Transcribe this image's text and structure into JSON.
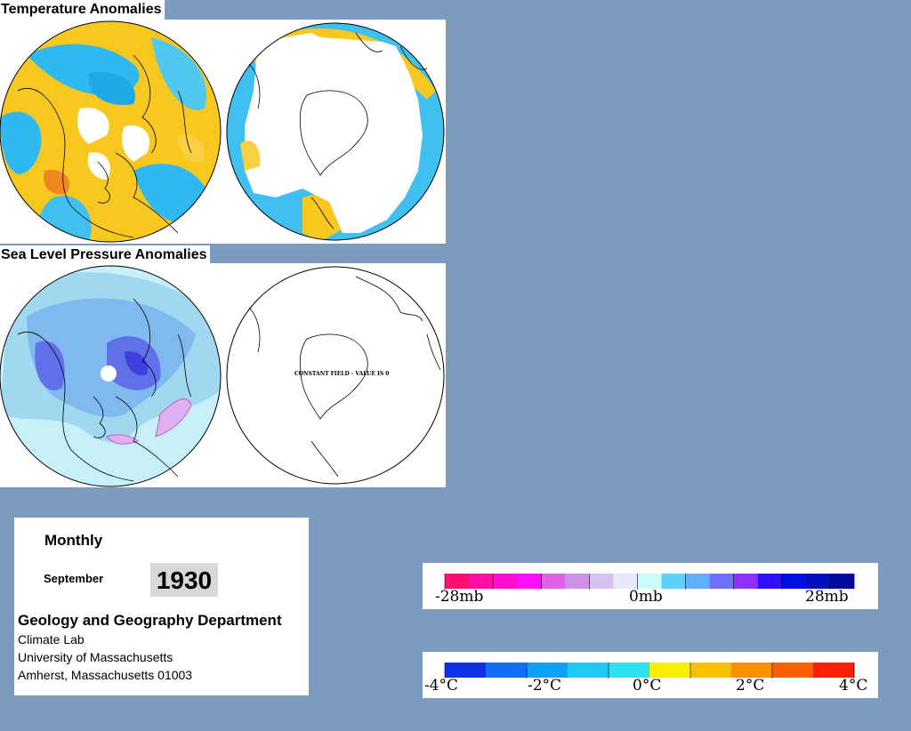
{
  "sections": {
    "temperature_title": "Temperature Anomalies",
    "pressure_title": "Sea Level Pressure Anomalies"
  },
  "south_pressure_note": "CONSTANT FIELD - VALUE IS 0",
  "info": {
    "period": "Monthly",
    "month": "September",
    "year": "1930",
    "department": "Geology and Geography Department",
    "lines": [
      "Climate Lab",
      "University of Massachusetts",
      "Amherst, Massachusetts 01003"
    ]
  },
  "pressure_legend": {
    "labels": [
      "-28mb",
      "0mb",
      "28mb"
    ],
    "colors": [
      "#ff1070",
      "#ff10a0",
      "#ff10d0",
      "#ff10ff",
      "#e060e8",
      "#d090e8",
      "#d8c0f0",
      "#e8e8ff",
      "#c8fff8",
      "#60d0ff",
      "#60b0ff",
      "#7070ff",
      "#9030ff",
      "#3010ff",
      "#0010e0",
      "#0010c0",
      "#0008a0"
    ]
  },
  "temperature_legend": {
    "labels": [
      "-4°C",
      "-2°C",
      "0°C",
      "2°C",
      "4°C"
    ],
    "colors": [
      "#1030e8",
      "#1070f0",
      "#10a0f8",
      "#20c8f8",
      "#30e0f0",
      "#f8f000",
      "#f8c000",
      "#f89000",
      "#f86000",
      "#f82000"
    ]
  }
}
